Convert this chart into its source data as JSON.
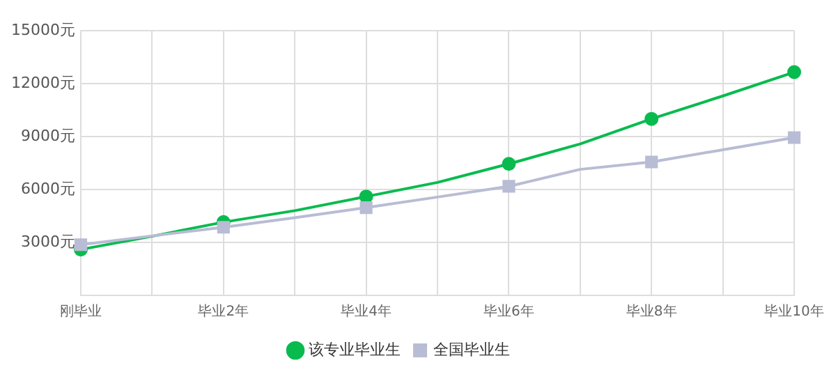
{
  "chart_data": {
    "type": "line",
    "categories": [
      "刚毕业",
      null,
      "毕业2年",
      null,
      "毕业4年",
      null,
      "毕业6年",
      null,
      "毕业8年",
      null,
      "毕业10年"
    ],
    "series": [
      {
        "name": "该专业毕业生",
        "color": "#09bb4f",
        "marker": "circle",
        "values": [
          2600,
          3350,
          4150,
          4800,
          5600,
          6400,
          7450,
          8580,
          10000,
          11300,
          12650
        ]
      },
      {
        "name": "全国毕业生",
        "color": "#b8bcd4",
        "marker": "square",
        "values": [
          2870,
          3370,
          3860,
          4400,
          4970,
          5570,
          6180,
          7140,
          7560,
          8250,
          8940
        ]
      }
    ],
    "ylim": [
      0,
      15000
    ],
    "yticks": [
      {
        "value": 3000,
        "label": "3000元"
      },
      {
        "value": 6000,
        "label": "6000元"
      },
      {
        "value": 9000,
        "label": "9000元"
      },
      {
        "value": 12000,
        "label": "12000元"
      },
      {
        "value": 15000,
        "label": "15000元"
      }
    ],
    "grid": true,
    "legend": "bottom"
  }
}
